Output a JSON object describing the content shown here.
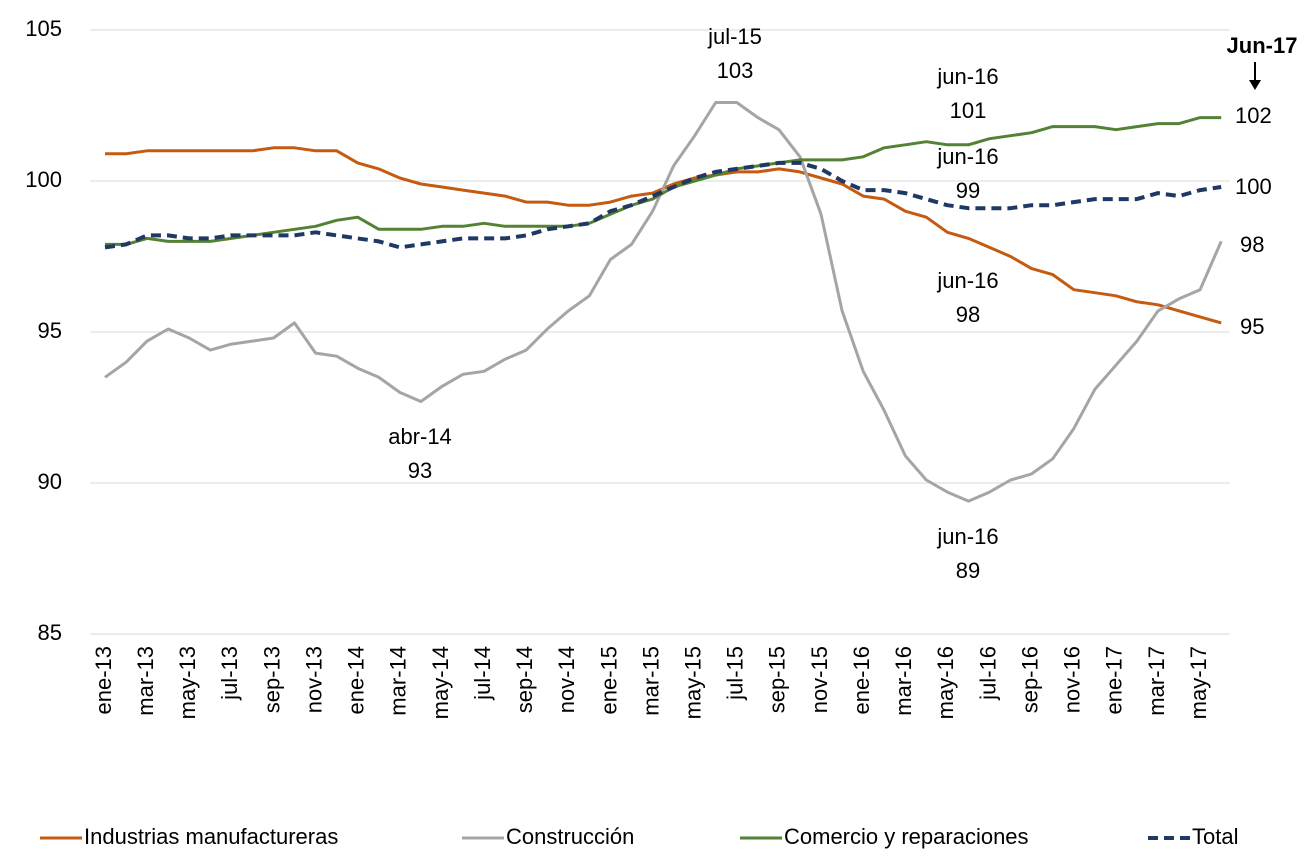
{
  "chart_data": {
    "type": "line",
    "categories": [
      "ene-13",
      null,
      "mar-13",
      null,
      "may-13",
      null,
      "jul-13",
      null,
      "sep-13",
      null,
      "nov-13",
      null,
      "ene-14",
      null,
      "mar-14",
      null,
      "may-14",
      null,
      "jul-14",
      null,
      "sep-14",
      null,
      "nov-14",
      null,
      "ene-15",
      null,
      "mar-15",
      null,
      "may-15",
      null,
      "jul-15",
      null,
      "sep-15",
      null,
      "nov-15",
      null,
      "ene-16",
      null,
      "mar-16",
      null,
      "may-16",
      null,
      "jul-16",
      null,
      "sep-16",
      null,
      "nov-16",
      null,
      "ene-17",
      null,
      "mar-17",
      null,
      "may-17",
      null
    ],
    "series": [
      {
        "name": "Industrias manufactureras",
        "color": "#c55a11",
        "dash": false,
        "values": [
          100.9,
          100.9,
          101.0,
          101.0,
          101.0,
          101.0,
          101.0,
          101.0,
          101.1,
          101.1,
          101.0,
          101.0,
          100.6,
          100.4,
          100.1,
          99.9,
          99.8,
          99.7,
          99.6,
          99.5,
          99.3,
          99.3,
          99.2,
          99.2,
          99.3,
          99.5,
          99.6,
          99.9,
          100.1,
          100.2,
          100.3,
          100.3,
          100.4,
          100.3,
          100.1,
          99.9,
          99.5,
          99.4,
          99.0,
          98.8,
          98.3,
          98.1,
          97.8,
          97.5,
          97.1,
          96.9,
          96.4,
          96.3,
          96.2,
          96.0,
          95.9,
          95.7,
          95.5,
          95.3
        ]
      },
      {
        "name": "Construcción",
        "color": "#a5a5a5",
        "dash": false,
        "values": [
          93.5,
          94.0,
          94.7,
          95.1,
          94.8,
          94.4,
          94.6,
          94.7,
          94.8,
          95.3,
          94.3,
          94.2,
          93.8,
          93.5,
          93.0,
          92.7,
          93.2,
          93.6,
          93.7,
          94.1,
          94.4,
          95.1,
          95.7,
          96.2,
          97.4,
          97.9,
          99.0,
          100.5,
          101.5,
          102.6,
          102.6,
          102.1,
          101.7,
          100.8,
          98.9,
          95.7,
          93.7,
          92.4,
          90.9,
          90.1,
          89.7,
          89.4,
          89.7,
          90.1,
          90.3,
          90.8,
          91.8,
          93.1,
          93.9,
          94.7,
          95.7,
          96.1,
          96.4,
          98.0
        ]
      },
      {
        "name": "Comercio y reparaciones",
        "color": "#548235",
        "dash": false,
        "values": [
          97.9,
          97.9,
          98.1,
          98.0,
          98.0,
          98.0,
          98.1,
          98.2,
          98.3,
          98.4,
          98.5,
          98.7,
          98.8,
          98.4,
          98.4,
          98.4,
          98.5,
          98.5,
          98.6,
          98.5,
          98.5,
          98.5,
          98.5,
          98.6,
          98.9,
          99.2,
          99.4,
          99.8,
          100.0,
          100.2,
          100.4,
          100.5,
          100.6,
          100.7,
          100.7,
          100.7,
          100.8,
          101.1,
          101.2,
          101.3,
          101.2,
          101.2,
          101.4,
          101.5,
          101.6,
          101.8,
          101.8,
          101.8,
          101.7,
          101.8,
          101.9,
          101.9,
          102.1,
          102.1
        ]
      },
      {
        "name": "Total",
        "color": "#1f3864",
        "dash": true,
        "values": [
          97.8,
          97.9,
          98.2,
          98.2,
          98.1,
          98.1,
          98.2,
          98.2,
          98.2,
          98.2,
          98.3,
          98.2,
          98.1,
          98.0,
          97.8,
          97.9,
          98.0,
          98.1,
          98.1,
          98.1,
          98.2,
          98.4,
          98.5,
          98.6,
          99.0,
          99.2,
          99.5,
          99.8,
          100.1,
          100.3,
          100.4,
          100.5,
          100.6,
          100.6,
          100.4,
          100.0,
          99.7,
          99.7,
          99.6,
          99.4,
          99.2,
          99.1,
          99.1,
          99.1,
          99.2,
          99.2,
          99.3,
          99.4,
          99.4,
          99.4,
          99.6,
          99.5,
          99.7,
          99.8
        ]
      }
    ],
    "end_labels": [
      "95",
      "98",
      "102",
      "100"
    ],
    "annotations": [
      [
        "jul-15",
        "103"
      ],
      [
        "abr-14",
        "93"
      ],
      [
        "jun-16",
        "101"
      ],
      [
        "jun-16",
        "99"
      ],
      [
        "jun-16",
        "98"
      ],
      [
        "jun-16",
        "89"
      ]
    ],
    "marker_label": "Jun-17",
    "ylim": [
      85,
      105
    ],
    "yticks": [
      85,
      90,
      95,
      100,
      105
    ],
    "grid": true
  }
}
